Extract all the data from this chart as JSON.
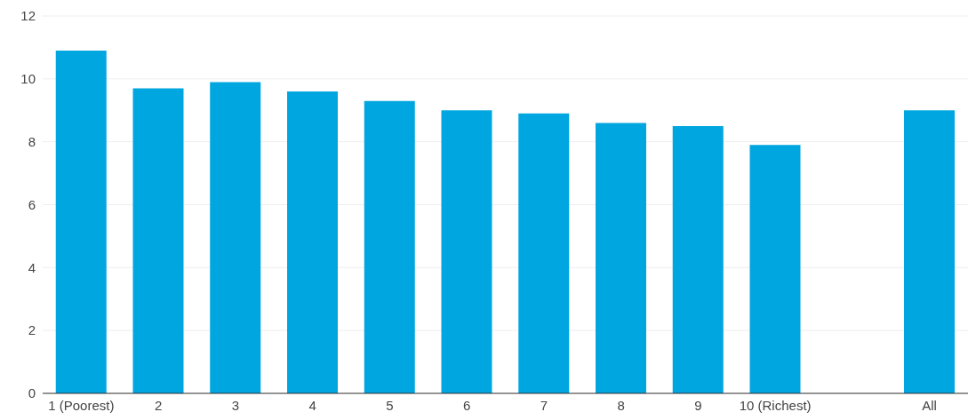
{
  "chart_data": {
    "type": "bar",
    "categories": [
      "1 (Poorest)",
      "2",
      "3",
      "4",
      "5",
      "6",
      "7",
      "8",
      "9",
      "10 (Richest)",
      null,
      "All"
    ],
    "values": [
      10.9,
      9.7,
      9.9,
      9.6,
      9.3,
      9.0,
      8.9,
      8.6,
      8.5,
      7.9,
      null,
      9.0
    ],
    "color": "#00a6e0",
    "ylim": [
      0,
      12
    ],
    "yticks": [
      0,
      2,
      4,
      6,
      8,
      10,
      12
    ],
    "grid": "y",
    "legend": false
  }
}
